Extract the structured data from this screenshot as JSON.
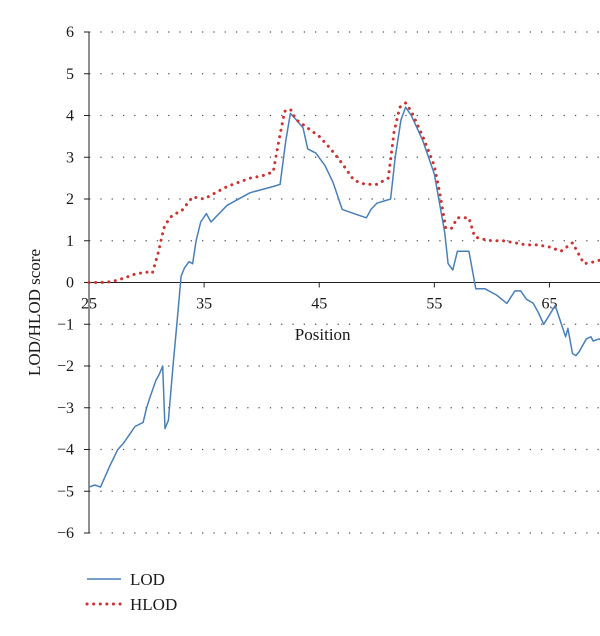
{
  "chart_data": {
    "type": "line",
    "xlabel": "Position",
    "ylabel": "LOD/HLOD score",
    "xlim": [
      25,
      70
    ],
    "ylim": [
      -6,
      6
    ],
    "x_ticks": [
      25,
      35,
      45,
      55,
      65
    ],
    "x_tick_labels": [
      "25",
      "35",
      "45",
      "55",
      "65"
    ],
    "y_ticks": [
      -6,
      -5,
      -4,
      -3,
      -2,
      -1,
      0,
      1,
      2,
      3,
      4,
      5,
      6
    ],
    "y_tick_labels": [
      "−6",
      "−5",
      "−4",
      "−3",
      "−2",
      "−1",
      "0",
      "1",
      "2",
      "3",
      "4",
      "5",
      "6"
    ],
    "grid": "horizontal dotted",
    "legend_position": "bottom-left",
    "series": [
      {
        "name": "LOD",
        "color": "#4a7fb5",
        "style": "solid",
        "x": [
          25,
          25.5,
          26,
          26.8,
          27.5,
          28,
          29,
          29.7,
          30,
          30.3,
          30.8,
          31.1,
          31.4,
          31.6,
          31.9,
          32.3,
          32.7,
          33,
          33.3,
          33.7,
          34,
          34.3,
          34.7,
          35.2,
          35.6,
          37,
          39,
          41,
          41.6,
          42.1,
          42.5,
          43,
          43.6,
          44,
          44.7,
          45.5,
          46.2,
          47,
          48,
          49.1,
          49.5,
          50,
          51.2,
          51.6,
          52.1,
          52.5,
          53,
          54,
          55,
          55.9,
          56.2,
          56.6,
          57,
          57.5,
          58,
          58.6,
          59.4,
          60.4,
          61.3,
          62,
          62.5,
          63,
          63.6,
          64,
          64.5,
          65.5,
          66.4,
          66.6,
          67,
          67.3,
          67.6,
          68.2,
          68.6,
          68.8,
          69.3,
          69.6,
          70
        ],
        "values": [
          -4.9,
          -4.85,
          -4.9,
          -4.4,
          -4.0,
          -3.85,
          -3.45,
          -3.35,
          -3.0,
          -2.75,
          -2.35,
          -2.2,
          -2.0,
          -3.5,
          -3.3,
          -2.0,
          -0.8,
          0.15,
          0.35,
          0.5,
          0.45,
          1.0,
          1.45,
          1.65,
          1.45,
          1.85,
          2.15,
          2.3,
          2.35,
          3.4,
          4.05,
          3.9,
          3.7,
          3.2,
          3.1,
          2.8,
          2.4,
          1.75,
          1.65,
          1.55,
          1.75,
          1.9,
          2.0,
          3.0,
          3.9,
          4.2,
          4.0,
          3.4,
          2.6,
          1.2,
          0.45,
          0.3,
          0.75,
          0.75,
          0.75,
          -0.15,
          -0.15,
          -0.3,
          -0.5,
          -0.2,
          -0.2,
          -0.4,
          -0.5,
          -0.7,
          -1.0,
          -0.55,
          -1.3,
          -1.1,
          -1.7,
          -1.75,
          -1.65,
          -1.35,
          -1.3,
          -1.4,
          -1.35,
          -1.4,
          -1.45
        ]
      },
      {
        "name": "HLOD",
        "color": "#cc3333",
        "style": "dotted",
        "x": [
          25,
          26,
          27,
          28,
          29,
          30,
          30.5,
          31,
          31.5,
          32,
          32.5,
          33,
          34,
          35,
          36,
          37,
          38,
          39,
          40,
          41,
          41.5,
          42,
          42.5,
          43,
          44,
          45,
          46,
          47,
          48,
          49,
          50,
          51,
          51.5,
          52,
          52.5,
          53,
          54,
          55,
          55.5,
          56,
          56.5,
          57,
          57.5,
          58,
          58.5,
          59,
          60,
          61,
          62,
          63,
          64,
          65,
          66,
          67,
          68,
          69,
          70
        ],
        "values": [
          0,
          0,
          0.02,
          0.1,
          0.2,
          0.25,
          0.22,
          0.7,
          1.3,
          1.55,
          1.65,
          1.7,
          2.05,
          2.0,
          2.15,
          2.3,
          2.4,
          2.5,
          2.55,
          2.65,
          3.4,
          4.1,
          4.15,
          3.9,
          3.7,
          3.5,
          3.2,
          2.85,
          2.45,
          2.35,
          2.35,
          2.5,
          3.6,
          4.2,
          4.3,
          4.1,
          3.5,
          2.8,
          2.1,
          1.3,
          1.3,
          1.55,
          1.55,
          1.55,
          1.1,
          1.05,
          1.0,
          1.0,
          0.95,
          0.9,
          0.9,
          0.85,
          0.75,
          0.95,
          0.45,
          0.5,
          0.6
        ]
      }
    ]
  }
}
